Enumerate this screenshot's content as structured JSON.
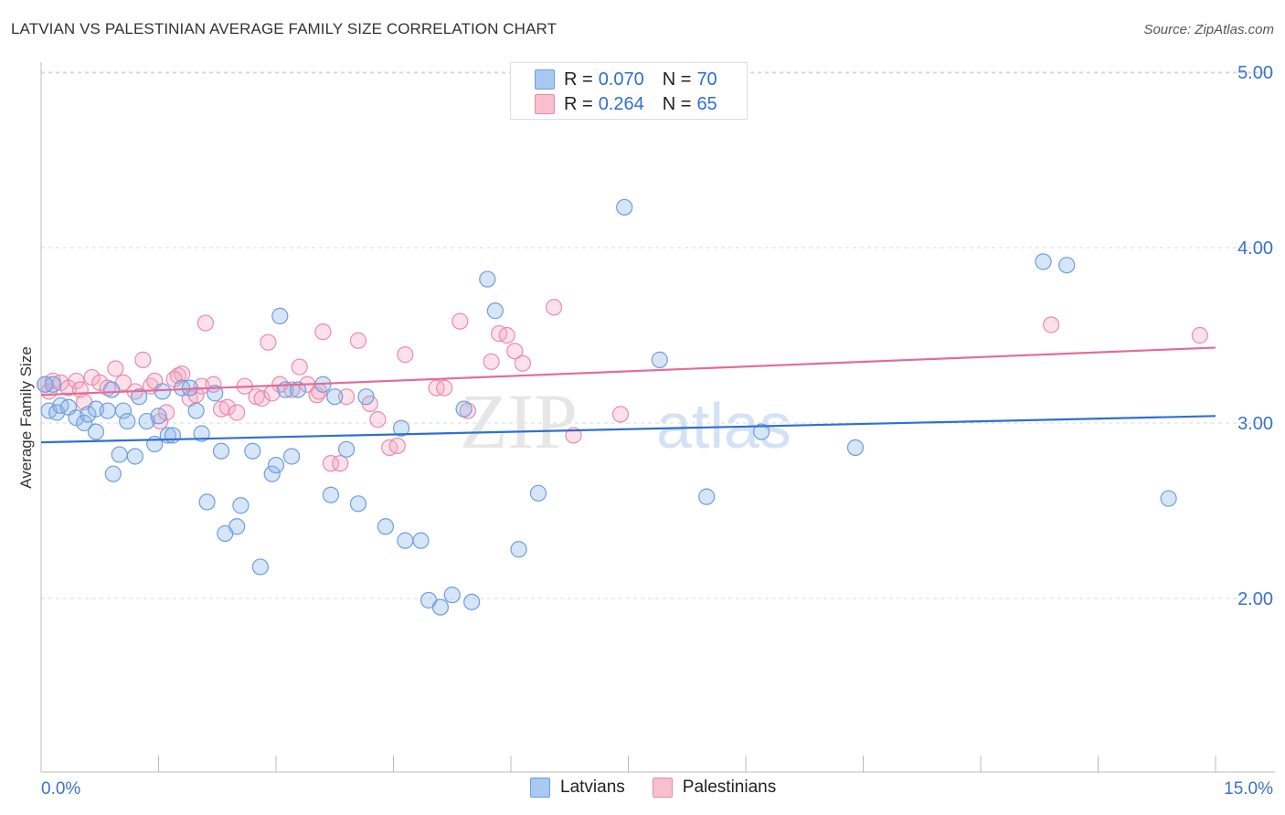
{
  "title": "LATVIAN VS PALESTINIAN AVERAGE FAMILY SIZE CORRELATION CHART",
  "source": "Source: ZipAtlas.com",
  "watermark": {
    "part1": "ZIP",
    "part2": "atlas"
  },
  "legend": {
    "r_label": "R =",
    "n_label": "N =",
    "rows": [
      {
        "r": "0.070",
        "n": "70",
        "color": "#a9c8f2",
        "stroke": "#6d9ee0"
      },
      {
        "r": "0.264",
        "n": "65",
        "color": "#f7bfd0",
        "stroke": "#e98ca9"
      }
    ]
  },
  "colors": {
    "latvians_fill": "rgba(140,180,235,0.35)",
    "latvians_stroke": "#6d9ee0",
    "latvians_line": "#2f6fd2",
    "palestinians_fill": "rgba(245,170,195,0.35)",
    "palestinians_stroke": "#e98ca9",
    "palestinians_line": "#e56b95",
    "tick_label": "#3a72c9",
    "grid": "#d8d8d8"
  },
  "chart_data": {
    "type": "scatter",
    "title": "LATVIAN VS PALESTINIAN AVERAGE FAMILY SIZE CORRELATION CHART",
    "xlabel": "",
    "ylabel": "Average Family Size",
    "xlim": [
      0,
      15
    ],
    "ylim": [
      1.0,
      5.1
    ],
    "x_tick_labels": [
      "0.0%",
      "15.0%"
    ],
    "y_ticks": [
      2.0,
      3.0,
      4.0,
      5.0
    ],
    "y_tick_labels": [
      "2.00",
      "3.00",
      "4.00",
      "5.00"
    ],
    "grid": true,
    "legend_position": "bottom",
    "series": [
      {
        "name": "Latvians",
        "trend": {
          "x": [
            0,
            15
          ],
          "y": [
            2.89,
            3.04
          ]
        },
        "points": [
          [
            0.1,
            3.07
          ],
          [
            0.2,
            3.06
          ],
          [
            0.25,
            3.1
          ],
          [
            0.35,
            3.09
          ],
          [
            0.45,
            3.03
          ],
          [
            0.55,
            3.0
          ],
          [
            0.6,
            3.05
          ],
          [
            0.7,
            3.08
          ],
          [
            0.7,
            2.95
          ],
          [
            0.85,
            3.07
          ],
          [
            0.9,
            3.19
          ],
          [
            0.92,
            2.71
          ],
          [
            1.0,
            2.82
          ],
          [
            1.05,
            3.07
          ],
          [
            1.1,
            3.01
          ],
          [
            1.2,
            2.81
          ],
          [
            1.25,
            3.15
          ],
          [
            1.35,
            3.01
          ],
          [
            1.45,
            2.88
          ],
          [
            1.5,
            3.04
          ],
          [
            1.55,
            3.18
          ],
          [
            1.62,
            2.93
          ],
          [
            1.68,
            2.93
          ],
          [
            1.8,
            3.2
          ],
          [
            1.9,
            3.2
          ],
          [
            1.98,
            3.07
          ],
          [
            2.05,
            2.94
          ],
          [
            2.12,
            2.55
          ],
          [
            2.22,
            3.17
          ],
          [
            2.3,
            2.84
          ],
          [
            2.35,
            2.37
          ],
          [
            2.5,
            2.41
          ],
          [
            2.55,
            2.53
          ],
          [
            2.7,
            2.84
          ],
          [
            2.8,
            2.18
          ],
          [
            2.95,
            2.71
          ],
          [
            3.0,
            2.76
          ],
          [
            3.05,
            3.61
          ],
          [
            3.12,
            3.19
          ],
          [
            3.2,
            2.81
          ],
          [
            3.28,
            3.19
          ],
          [
            3.6,
            3.22
          ],
          [
            3.7,
            2.59
          ],
          [
            3.75,
            3.15
          ],
          [
            3.9,
            2.85
          ],
          [
            4.05,
            2.54
          ],
          [
            4.15,
            3.15
          ],
          [
            4.4,
            2.41
          ],
          [
            4.6,
            2.97
          ],
          [
            4.65,
            2.33
          ],
          [
            4.85,
            2.33
          ],
          [
            4.95,
            1.99
          ],
          [
            5.1,
            1.95
          ],
          [
            5.25,
            2.02
          ],
          [
            5.4,
            3.08
          ],
          [
            5.5,
            1.98
          ],
          [
            5.7,
            3.82
          ],
          [
            5.8,
            3.64
          ],
          [
            6.1,
            2.28
          ],
          [
            6.35,
            2.6
          ],
          [
            7.45,
            4.23
          ],
          [
            7.9,
            3.36
          ],
          [
            8.5,
            2.58
          ],
          [
            9.2,
            2.95
          ],
          [
            10.4,
            2.86
          ],
          [
            12.8,
            3.92
          ],
          [
            13.1,
            3.9
          ],
          [
            14.4,
            2.57
          ],
          [
            0.15,
            3.22
          ],
          [
            0.05,
            3.22
          ]
        ]
      },
      {
        "name": "Palestinians",
        "trend": {
          "x": [
            0,
            15
          ],
          "y": [
            3.16,
            3.43
          ]
        },
        "points": [
          [
            0.05,
            3.22
          ],
          [
            0.15,
            3.24
          ],
          [
            0.25,
            3.23
          ],
          [
            0.35,
            3.2
          ],
          [
            0.45,
            3.24
          ],
          [
            0.5,
            3.19
          ],
          [
            0.65,
            3.26
          ],
          [
            0.75,
            3.23
          ],
          [
            0.85,
            3.2
          ],
          [
            0.95,
            3.31
          ],
          [
            1.05,
            3.23
          ],
          [
            1.2,
            3.18
          ],
          [
            1.3,
            3.36
          ],
          [
            1.4,
            3.21
          ],
          [
            1.45,
            3.24
          ],
          [
            1.52,
            3.01
          ],
          [
            1.6,
            3.06
          ],
          [
            1.75,
            3.27
          ],
          [
            1.8,
            3.28
          ],
          [
            1.9,
            3.14
          ],
          [
            1.98,
            3.16
          ],
          [
            2.05,
            3.21
          ],
          [
            2.1,
            3.57
          ],
          [
            2.2,
            3.22
          ],
          [
            2.3,
            3.08
          ],
          [
            2.38,
            3.09
          ],
          [
            2.5,
            3.06
          ],
          [
            2.6,
            3.21
          ],
          [
            2.75,
            3.15
          ],
          [
            2.82,
            3.14
          ],
          [
            2.9,
            3.46
          ],
          [
            3.05,
            3.22
          ],
          [
            3.2,
            3.19
          ],
          [
            3.3,
            3.32
          ],
          [
            3.4,
            3.22
          ],
          [
            3.52,
            3.16
          ],
          [
            3.6,
            3.52
          ],
          [
            3.7,
            2.77
          ],
          [
            3.82,
            2.77
          ],
          [
            3.9,
            3.15
          ],
          [
            4.05,
            3.47
          ],
          [
            4.2,
            3.11
          ],
          [
            4.3,
            3.02
          ],
          [
            4.45,
            2.86
          ],
          [
            4.55,
            2.87
          ],
          [
            4.65,
            3.39
          ],
          [
            5.05,
            3.2
          ],
          [
            5.15,
            3.2
          ],
          [
            5.35,
            3.58
          ],
          [
            5.45,
            3.07
          ],
          [
            5.75,
            3.35
          ],
          [
            5.85,
            3.51
          ],
          [
            5.95,
            3.5
          ],
          [
            6.05,
            3.41
          ],
          [
            6.15,
            3.34
          ],
          [
            6.55,
            3.66
          ],
          [
            6.8,
            2.93
          ],
          [
            7.4,
            3.05
          ],
          [
            12.9,
            3.56
          ],
          [
            14.8,
            3.5
          ],
          [
            0.1,
            3.18
          ],
          [
            0.55,
            3.12
          ],
          [
            1.7,
            3.25
          ],
          [
            2.95,
            3.17
          ],
          [
            3.55,
            3.18
          ]
        ]
      }
    ]
  },
  "bottom_legend": [
    {
      "label": "Latvians",
      "color": "#a9c8f2",
      "stroke": "#6d9ee0"
    },
    {
      "label": "Palestinians",
      "color": "#f7bfd0",
      "stroke": "#e98ca9"
    }
  ]
}
